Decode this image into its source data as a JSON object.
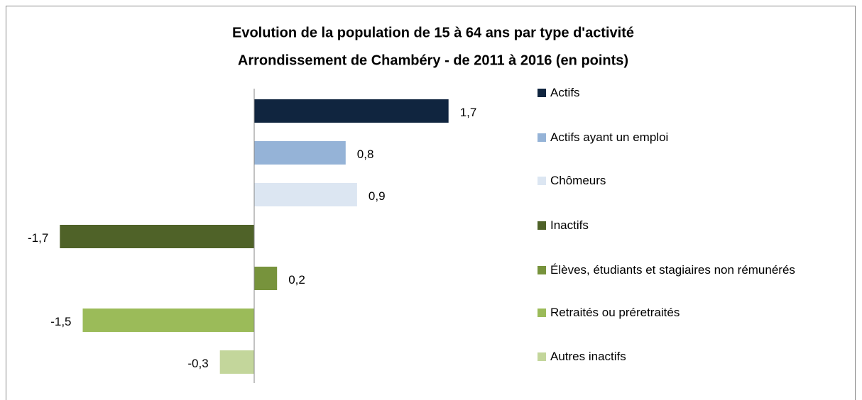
{
  "chart_data": {
    "type": "bar",
    "orientation": "horizontal",
    "title": "Evolution de la population de 15 à 64 ans par type d'activité",
    "subtitle": "Arrondissement de Chambéry - de 2011 à 2016 (en points)",
    "categories": [
      "Actifs",
      "Actifs ayant un emploi",
      "Chômeurs",
      "Inactifs",
      "Élèves, étudiants et stagiaires non rémunérés",
      "Retraités ou préretraités",
      "Autres inactifs"
    ],
    "values": [
      1.7,
      0.8,
      0.9,
      -1.7,
      0.2,
      -1.5,
      -0.3
    ],
    "value_labels": [
      "1,7",
      "0,8",
      "0,9",
      "-1,7",
      "0,2",
      "-1,5",
      "-0,3"
    ],
    "colors": [
      "#10253f",
      "#95b3d7",
      "#dce6f2",
      "#4f6228",
      "#77933c",
      "#9bbb59",
      "#c3d69b"
    ],
    "xlim": [
      -2,
      2
    ],
    "legend": "right"
  }
}
